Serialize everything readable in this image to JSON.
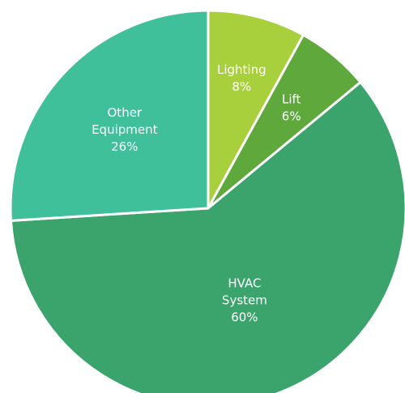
{
  "chart_data": {
    "type": "pie",
    "slices": [
      {
        "label": "Lighting",
        "value": 8,
        "display": "8%",
        "color": "#a8cf3c"
      },
      {
        "label": "Lift",
        "value": 6,
        "display": "6%",
        "color": "#5fa83c"
      },
      {
        "label": "HVAC System",
        "value": 60,
        "display": "60%",
        "color": "#3aa46c"
      },
      {
        "label": "Other Equipment",
        "value": 26,
        "display": "26%",
        "color": "#3fc09a"
      }
    ],
    "start_angle_deg": 0,
    "direction": "clockwise",
    "legend": "none",
    "data_labels": "inside"
  }
}
